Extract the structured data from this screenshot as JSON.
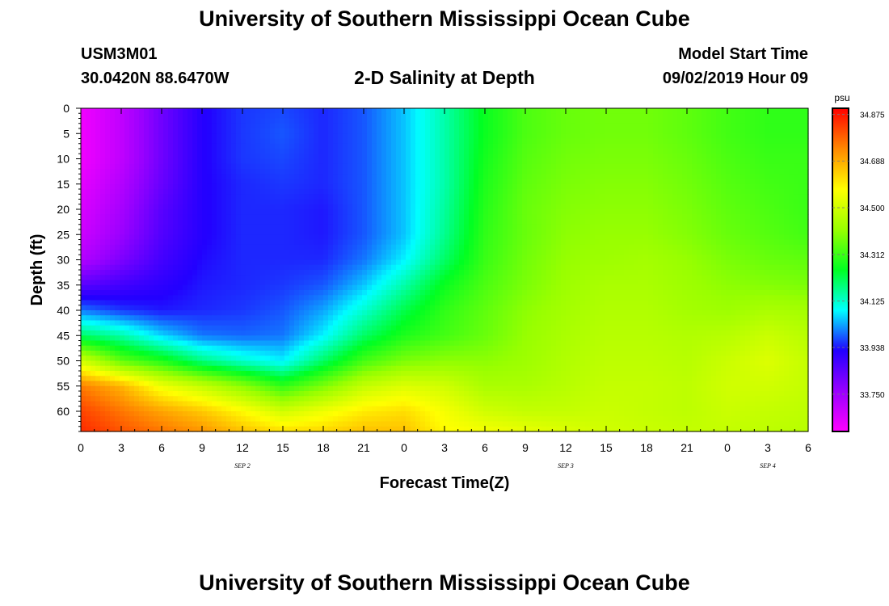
{
  "header": {
    "title": "University of Southern Mississippi Ocean Cube",
    "station_id": "USM3M01",
    "station_location": "30.0420N 88.6470W",
    "subtitle": "2-D Salinity at Depth",
    "model_start_label": "Model Start Time",
    "model_start_value": "09/02/2019 Hour 09"
  },
  "footer": {
    "title": "University of Southern Mississippi Ocean Cube"
  },
  "chart_data": {
    "type": "heatmap",
    "title": "2-D Salinity at Depth",
    "xlabel": "Forecast Time(Z)",
    "ylabel": "Depth (ft)",
    "x_range_hours": [
      0,
      54
    ],
    "y_range": [
      0,
      64
    ],
    "y_inverted": true,
    "x_ticks": [
      {
        "hour": 0,
        "label": "0"
      },
      {
        "hour": 3,
        "label": "3"
      },
      {
        "hour": 6,
        "label": "6"
      },
      {
        "hour": 9,
        "label": "9"
      },
      {
        "hour": 12,
        "label": "12"
      },
      {
        "hour": 15,
        "label": "15"
      },
      {
        "hour": 18,
        "label": "18"
      },
      {
        "hour": 21,
        "label": "21"
      },
      {
        "hour": 24,
        "label": "0"
      },
      {
        "hour": 27,
        "label": "3"
      },
      {
        "hour": 30,
        "label": "6"
      },
      {
        "hour": 33,
        "label": "9"
      },
      {
        "hour": 36,
        "label": "12"
      },
      {
        "hour": 39,
        "label": "15"
      },
      {
        "hour": 42,
        "label": "18"
      },
      {
        "hour": 45,
        "label": "21"
      },
      {
        "hour": 48,
        "label": "0"
      },
      {
        "hour": 51,
        "label": "3"
      },
      {
        "hour": 54,
        "label": "6"
      }
    ],
    "date_labels": [
      {
        "hour": 12,
        "label": "SEP 2"
      },
      {
        "hour": 36,
        "label": "SEP 3"
      },
      {
        "hour": 51,
        "label": "SEP 4"
      }
    ],
    "y_ticks": [
      0,
      5,
      10,
      15,
      20,
      25,
      30,
      35,
      40,
      45,
      50,
      55,
      60
    ],
    "colorbar": {
      "unit": "psu",
      "min": 33.6,
      "max": 34.9,
      "tick_values": [
        33.75,
        33.938,
        34.125,
        34.312,
        34.5,
        34.688,
        34.875
      ],
      "tick_labels": [
        "33.750",
        "33.938",
        "34.125",
        "34.312",
        "34.500",
        "34.688",
        "34.875"
      ],
      "colors": [
        "#ff00ff",
        "#9900ff",
        "#2200ff",
        "#00ffff",
        "#00ff22",
        "#99ff00",
        "#ffff00",
        "#ff8800",
        "#ff0000"
      ]
    },
    "grid": {
      "times": [
        0,
        3,
        6,
        9,
        12,
        15,
        18,
        21,
        24,
        27,
        30,
        33,
        36,
        39,
        42,
        45,
        48,
        51,
        54
      ],
      "depths": [
        0,
        5,
        10,
        15,
        20,
        25,
        30,
        35,
        40,
        45,
        50,
        55,
        60,
        64
      ],
      "values": [
        [
          33.62,
          33.7,
          33.82,
          33.92,
          33.96,
          33.97,
          33.95,
          33.98,
          34.05,
          34.15,
          34.26,
          34.33,
          34.36,
          34.37,
          34.37,
          34.35,
          34.32,
          34.3,
          34.3
        ],
        [
          33.62,
          33.7,
          33.82,
          33.92,
          33.96,
          33.98,
          33.95,
          33.98,
          34.05,
          34.15,
          34.26,
          34.33,
          34.36,
          34.37,
          34.37,
          34.35,
          34.32,
          34.3,
          34.3
        ],
        [
          33.62,
          33.7,
          33.82,
          33.92,
          33.96,
          33.97,
          33.95,
          33.98,
          34.05,
          34.15,
          34.27,
          34.34,
          34.37,
          34.38,
          34.38,
          34.36,
          34.33,
          34.31,
          34.31
        ],
        [
          33.64,
          33.72,
          33.83,
          33.92,
          33.95,
          33.96,
          33.95,
          33.98,
          34.05,
          34.15,
          34.28,
          34.35,
          34.38,
          34.39,
          34.39,
          34.37,
          34.34,
          34.32,
          34.31
        ],
        [
          33.66,
          33.74,
          33.85,
          33.92,
          33.95,
          33.95,
          33.94,
          33.98,
          34.05,
          34.16,
          34.29,
          34.36,
          34.39,
          34.4,
          34.4,
          34.38,
          34.35,
          34.33,
          34.31
        ],
        [
          33.68,
          33.76,
          33.86,
          33.92,
          33.95,
          33.95,
          33.94,
          33.98,
          34.05,
          34.17,
          34.3,
          34.36,
          34.4,
          34.41,
          34.41,
          34.39,
          34.36,
          34.34,
          34.32
        ],
        [
          33.72,
          33.8,
          33.88,
          33.93,
          33.95,
          33.95,
          33.95,
          34.0,
          34.08,
          34.2,
          34.31,
          34.37,
          34.41,
          34.42,
          34.43,
          34.41,
          34.38,
          34.36,
          34.35
        ],
        [
          33.85,
          33.88,
          33.91,
          33.94,
          33.95,
          33.96,
          33.98,
          34.05,
          34.15,
          34.26,
          34.33,
          34.38,
          34.42,
          34.44,
          34.44,
          34.42,
          34.4,
          34.39,
          34.38
        ],
        [
          34.0,
          33.96,
          33.94,
          33.95,
          33.96,
          33.98,
          34.03,
          34.12,
          34.22,
          34.3,
          34.35,
          34.4,
          34.43,
          34.45,
          34.45,
          34.43,
          34.42,
          34.44,
          34.43
        ],
        [
          34.2,
          34.15,
          34.06,
          34.0,
          33.99,
          34.0,
          34.08,
          34.2,
          34.28,
          34.32,
          34.36,
          34.41,
          34.44,
          34.46,
          34.46,
          34.45,
          34.46,
          34.49,
          34.46
        ],
        [
          34.5,
          34.35,
          34.28,
          34.18,
          34.12,
          34.08,
          34.2,
          34.32,
          34.38,
          34.4,
          34.4,
          34.42,
          34.45,
          34.47,
          34.47,
          34.46,
          34.49,
          34.52,
          34.48
        ],
        [
          34.75,
          34.68,
          34.55,
          34.48,
          34.4,
          34.3,
          34.38,
          34.48,
          34.52,
          34.5,
          34.44,
          34.44,
          34.46,
          34.48,
          34.48,
          34.47,
          34.5,
          34.5,
          34.48
        ],
        [
          34.82,
          34.76,
          34.7,
          34.65,
          34.58,
          34.5,
          34.55,
          34.6,
          34.62,
          34.56,
          34.5,
          34.48,
          34.48,
          34.49,
          34.48,
          34.47,
          34.49,
          34.48,
          34.47
        ],
        [
          34.85,
          34.8,
          34.76,
          34.72,
          34.66,
          34.62,
          34.63,
          34.66,
          34.66,
          34.58,
          34.56,
          34.54,
          34.52,
          34.5,
          34.49,
          34.48,
          34.48,
          34.47,
          34.46
        ]
      ]
    }
  }
}
